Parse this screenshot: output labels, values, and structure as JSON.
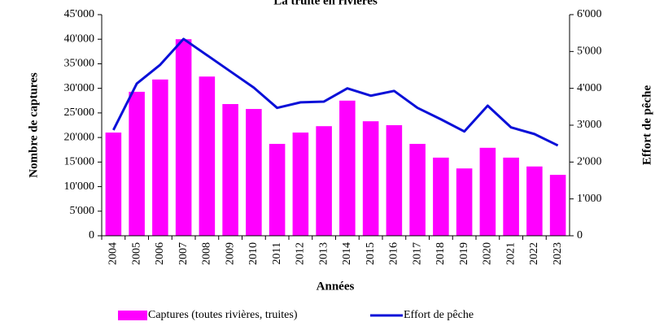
{
  "chart_data": {
    "type": "bar_line",
    "title": "La truite en rivières",
    "x_label": "Années",
    "y_label": "Nombre de captures",
    "y2_label": "Effort de pêche",
    "categories": [
      "2004",
      "2005",
      "2006",
      "2007",
      "2008",
      "2009",
      "2010",
      "2011",
      "2012",
      "2013",
      "2014",
      "2015",
      "2016",
      "2017",
      "2018",
      "2019",
      "2020",
      "2021",
      "2022",
      "2023"
    ],
    "series": [
      {
        "name": "Captures (toutes rivières, truites)",
        "type": "bar",
        "color": "#ff00ff",
        "axis": "y",
        "values": [
          21000,
          29300,
          31800,
          40000,
          32400,
          26800,
          25800,
          18700,
          21000,
          22300,
          27500,
          23300,
          22500,
          18700,
          15900,
          13700,
          17900,
          15900,
          14100,
          12400
        ]
      },
      {
        "name": "Effort de pêche",
        "type": "line",
        "color": "#0a10d8",
        "axis": "y2",
        "values": [
          2870,
          4130,
          4640,
          5340,
          4900,
          4460,
          4020,
          3470,
          3620,
          3640,
          4000,
          3800,
          3930,
          3470,
          3160,
          2830,
          3530,
          2940,
          2760,
          2450
        ]
      }
    ],
    "ylim": [
      0,
      45000
    ],
    "yticks": [
      0,
      {
        "value": 5000,
        "label": "5'000"
      },
      {
        "value": 10000,
        "label": "10'000"
      },
      {
        "value": 15000,
        "label": "15'000"
      },
      {
        "value": 20000,
        "label": "20'000"
      },
      {
        "value": 25000,
        "label": "25'000"
      },
      {
        "value": 30000,
        "label": "30'000"
      },
      {
        "value": 35000,
        "label": "35'000"
      },
      {
        "value": 40000,
        "label": "40'000"
      },
      {
        "value": 45000,
        "label": "45'000"
      }
    ],
    "y2lim": [
      0,
      6000
    ],
    "y2ticks": [
      0,
      {
        "value": 1000,
        "label": "1'000"
      },
      {
        "value": 2000,
        "label": "2'000"
      },
      {
        "value": 3000,
        "label": "3'000"
      },
      {
        "value": 4000,
        "label": "4'000"
      },
      {
        "value": 5000,
        "label": "5'000"
      },
      {
        "value": 6000,
        "label": "6'000"
      }
    ],
    "legend": "bottom"
  }
}
